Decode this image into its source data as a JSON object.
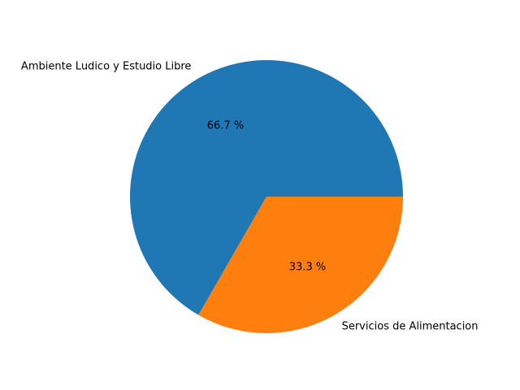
{
  "chart_data": {
    "type": "pie",
    "title": "",
    "slices": [
      {
        "label": "Ambiente Ludico y Estudio Libre",
        "value": 66.7,
        "pct_label": "66.7 %",
        "color": "#1f77b4"
      },
      {
        "label": "Servicios de Alimentacion",
        "value": 33.3,
        "pct_label": "33.3 %",
        "color": "#ff7f0e"
      }
    ],
    "start_angle_deg": 0,
    "direction": "counterclockwise",
    "legend": "none"
  }
}
